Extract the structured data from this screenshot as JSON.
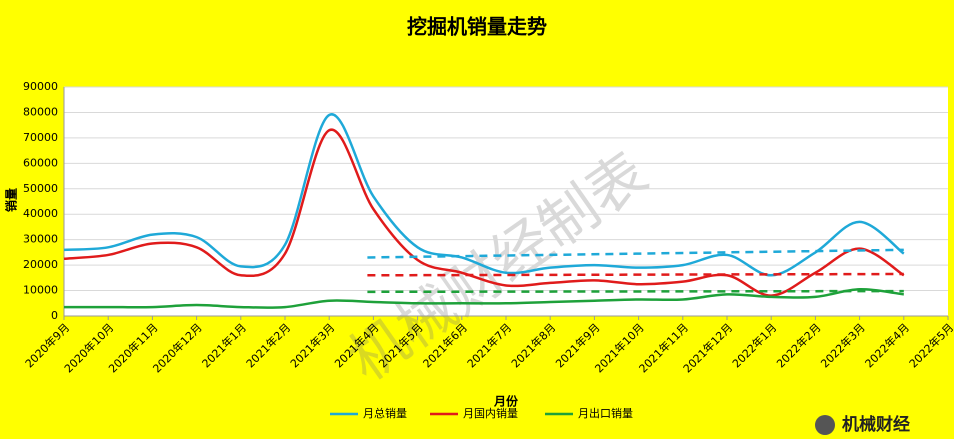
{
  "chart_data": {
    "type": "line",
    "title": "挖掘机销量走势",
    "x_label": "月份",
    "y_label": "销量",
    "watermark": "机械财经制表",
    "logo": "机械财经",
    "categories": [
      "2020年9月",
      "2020年10月",
      "2020年11月",
      "2020年12月",
      "2021年1月",
      "2021年2月",
      "2021年3月",
      "2021年4月",
      "2021年5月",
      "2021年6月",
      "2021年7月",
      "2021年8月",
      "2021年9月",
      "2021年10月",
      "2021年11月",
      "2021年12月",
      "2022年1月",
      "2022年2月",
      "2022年3月",
      "2022年4月",
      "2022年5月"
    ],
    "series": [
      {
        "name": "月总销量",
        "color": "#1fa9d8",
        "values": [
          26000,
          27000,
          32000,
          31000,
          19500,
          28000,
          79000,
          47000,
          27000,
          23000,
          17000,
          19000,
          20000,
          19000,
          20000,
          24000,
          16000,
          25000,
          37000,
          24500,
          null
        ]
      },
      {
        "name": "月国内销量",
        "color": "#e01b1b",
        "values": [
          22500,
          24000,
          28500,
          27000,
          16000,
          24500,
          73000,
          42000,
          22000,
          17000,
          12000,
          13000,
          14000,
          12500,
          13500,
          16000,
          8000,
          17000,
          26500,
          16000,
          null
        ]
      },
      {
        "name": "月出口销量",
        "color": "#1ea13a",
        "values": [
          3500,
          3500,
          3500,
          4300,
          3500,
          3500,
          6000,
          5500,
          5000,
          5000,
          5000,
          5500,
          6000,
          6500,
          6500,
          8500,
          7500,
          7500,
          10500,
          8500,
          null
        ]
      }
    ],
    "trend_lines": [
      {
        "color": "#1fa9d8",
        "from": 7,
        "to": 19,
        "values": [
          23000,
          26000
        ]
      },
      {
        "color": "#e01b1b",
        "from": 7,
        "to": 19,
        "values": [
          16000,
          16500
        ]
      },
      {
        "color": "#1ea13a",
        "from": 7,
        "to": 19,
        "values": [
          9500,
          9800
        ]
      }
    ],
    "ylim": [
      0,
      90000
    ],
    "yticks": [
      0,
      10000,
      20000,
      30000,
      40000,
      50000,
      60000,
      70000,
      80000,
      90000
    ],
    "grid": true,
    "legend": "bottom",
    "background": "#ffff00"
  }
}
